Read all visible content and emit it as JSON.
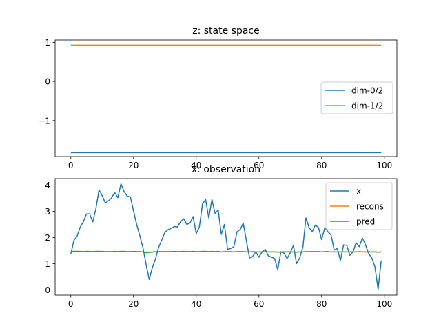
{
  "chart_data": [
    {
      "type": "line",
      "title": "z: state space",
      "xlabel": "",
      "ylabel": "",
      "xlim": [
        -5,
        104
      ],
      "ylim": [
        -1.92,
        1.06
      ],
      "xticks": [
        0,
        20,
        40,
        60,
        80,
        100
      ],
      "yticks": [
        1,
        0,
        -1
      ],
      "ytick_labels": [
        "1",
        "0",
        "−1"
      ],
      "legend": "center-right",
      "series": [
        {
          "name": "dim-0/2",
          "color": "#1f77b4",
          "x_start": 0,
          "x_end": 99,
          "constant": -1.82
        },
        {
          "name": "dim-1/2",
          "color": "#ff7f0e",
          "x_start": 0,
          "x_end": 99,
          "constant": 0.93
        }
      ]
    },
    {
      "type": "line",
      "title": "x: observation",
      "xlabel": "",
      "ylabel": "",
      "xlim": [
        -5,
        104
      ],
      "ylim": [
        -0.2,
        4.25
      ],
      "xticks": [
        0,
        20,
        40,
        60,
        80,
        100
      ],
      "yticks": [
        4,
        3,
        2,
        1,
        0
      ],
      "legend": "top-right",
      "series": [
        {
          "name": "x",
          "color": "#1f77b4",
          "values": [
            1.36,
            1.9,
            2.05,
            2.4,
            2.6,
            2.9,
            2.9,
            2.6,
            3.1,
            3.82,
            3.6,
            3.32,
            3.4,
            3.52,
            3.72,
            3.52,
            4.05,
            3.75,
            3.58,
            3.55,
            3.02,
            2.5,
            2.07,
            1.62,
            0.98,
            0.4,
            0.85,
            1.18,
            1.62,
            1.9,
            2.2,
            2.3,
            2.35,
            2.42,
            2.4,
            2.6,
            2.72,
            2.5,
            2.55,
            2.8,
            2.15,
            2.4,
            3.28,
            3.45,
            2.75,
            3.45,
            2.92,
            3.05,
            2.12,
            2.5,
            1.55,
            1.58,
            1.65,
            2.22,
            2.3,
            2.55,
            1.88,
            1.22,
            1.28,
            1.45,
            1.25,
            1.45,
            1.55,
            1.3,
            1.25,
            1.2,
            0.78,
            1.45,
            1.4,
            1.2,
            1.42,
            1.7,
            1.0,
            1.22,
            1.62,
            2.75,
            2.38,
            2.22,
            2.48,
            2.38,
            1.92,
            2.38,
            2.22,
            2.1,
            1.52,
            1.58,
            1.12,
            1.72,
            1.7,
            1.32,
            1.45,
            1.8,
            1.65,
            1.98,
            1.72,
            1.38,
            1.22,
            0.88,
            0.02,
            1.12
          ]
        },
        {
          "name": "recons",
          "color": "#ff7f0e",
          "values": [
            1.46,
            1.47,
            1.47,
            1.46,
            1.46,
            1.47,
            1.46,
            1.46,
            1.47,
            1.47,
            1.46,
            1.46,
            1.46,
            1.46,
            1.47,
            1.46,
            1.47,
            1.47,
            1.46,
            1.46,
            1.46,
            1.46,
            1.46,
            1.45,
            1.43,
            1.44,
            1.45,
            1.46,
            1.46,
            1.46,
            1.46,
            1.46,
            1.46,
            1.46,
            1.46,
            1.46,
            1.47,
            1.46,
            1.46,
            1.47,
            1.46,
            1.46,
            1.47,
            1.47,
            1.46,
            1.47,
            1.46,
            1.46,
            1.45,
            1.46,
            1.45,
            1.45,
            1.45,
            1.46,
            1.46,
            1.46,
            1.45,
            1.45,
            1.45,
            1.45,
            1.45,
            1.45,
            1.45,
            1.45,
            1.45,
            1.45,
            1.44,
            1.45,
            1.45,
            1.45,
            1.45,
            1.45,
            1.44,
            1.45,
            1.45,
            1.46,
            1.46,
            1.46,
            1.46,
            1.46,
            1.45,
            1.46,
            1.46,
            1.45,
            1.45,
            1.45,
            1.45,
            1.45,
            1.45,
            1.45,
            1.45,
            1.45,
            1.45,
            1.45,
            1.45,
            1.45,
            1.45,
            1.45,
            1.44,
            1.45
          ]
        },
        {
          "name": "pred",
          "color": "#2ca02c",
          "values": [
            1.47,
            1.47,
            1.47,
            1.47,
            1.46,
            1.47,
            1.47,
            1.46,
            1.47,
            1.47,
            1.47,
            1.46,
            1.46,
            1.46,
            1.47,
            1.46,
            1.47,
            1.47,
            1.46,
            1.46,
            1.47,
            1.46,
            1.46,
            1.45,
            1.42,
            1.43,
            1.44,
            1.46,
            1.46,
            1.46,
            1.46,
            1.46,
            1.46,
            1.47,
            1.46,
            1.46,
            1.47,
            1.46,
            1.46,
            1.47,
            1.46,
            1.46,
            1.47,
            1.47,
            1.46,
            1.47,
            1.46,
            1.47,
            1.45,
            1.46,
            1.46,
            1.46,
            1.45,
            1.46,
            1.46,
            1.46,
            1.45,
            1.45,
            1.46,
            1.45,
            1.45,
            1.45,
            1.46,
            1.45,
            1.45,
            1.45,
            1.44,
            1.45,
            1.45,
            1.45,
            1.45,
            1.45,
            1.44,
            1.45,
            1.45,
            1.46,
            1.46,
            1.46,
            1.46,
            1.46,
            1.45,
            1.46,
            1.46,
            1.45,
            1.45,
            1.45,
            1.45,
            1.45,
            1.45,
            1.45,
            1.45,
            1.45,
            1.46,
            1.45,
            1.45,
            1.45,
            1.45,
            1.45,
            1.44,
            1.45
          ]
        }
      ]
    }
  ]
}
